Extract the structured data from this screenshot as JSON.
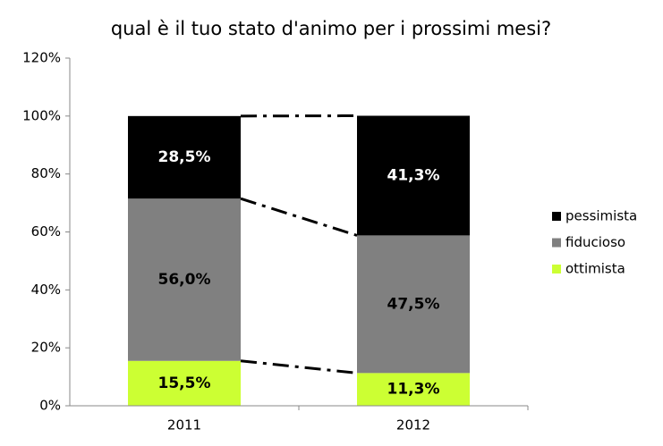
{
  "chart_data": {
    "type": "stacked_bar",
    "title": "qual è il tuo stato d'animo per i prossimi mesi?",
    "categories": [
      "2011",
      "2012"
    ],
    "series": [
      {
        "name": "ottimista",
        "color": "#ccff33",
        "values": [
          15.5,
          11.3
        ],
        "value_labels": [
          "15,5%",
          "11,3%"
        ]
      },
      {
        "name": "fiducioso",
        "color": "#808080",
        "values": [
          56.0,
          47.5
        ],
        "value_labels": [
          "56,0%",
          "47,5%"
        ]
      },
      {
        "name": "pessimista",
        "color": "#000000",
        "values": [
          28.5,
          41.3
        ],
        "value_labels": [
          "28,5%",
          "41,3%"
        ]
      }
    ],
    "ylim": [
      0,
      120
    ],
    "yticks": [
      {
        "value": 0,
        "label": "0%"
      },
      {
        "value": 20,
        "label": "20%"
      },
      {
        "value": 40,
        "label": "40%"
      },
      {
        "value": 60,
        "label": "60%"
      },
      {
        "value": 80,
        "label": "80%"
      },
      {
        "value": 100,
        "label": "100%"
      },
      {
        "value": 120,
        "label": "120%"
      }
    ],
    "legend": "right"
  }
}
